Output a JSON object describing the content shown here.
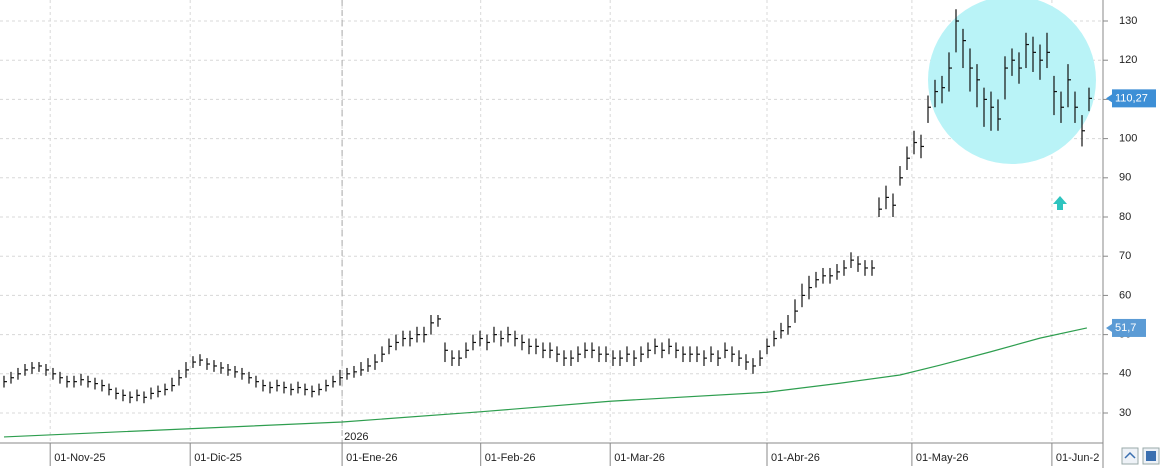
{
  "chart_data": {
    "type": "ohlc",
    "xlim": [
      -0.57,
      157
    ],
    "xticks": [
      {
        "value": 6.6,
        "label": "01-Nov-25"
      },
      {
        "value": 26.6,
        "label": "01-Dic-25"
      },
      {
        "value": 48.3,
        "label": "01-Ene-26"
      },
      {
        "value": 68.1,
        "label": "01-Feb-26"
      },
      {
        "value": 86.6,
        "label": "01-Mar-26"
      },
      {
        "value": 109,
        "label": "01-Abr-26"
      },
      {
        "value": 129.7,
        "label": "01-May-26"
      },
      {
        "value": 149.7,
        "label": "01-Jun-2"
      }
    ],
    "ylim": [
      22.35,
      135.36
    ],
    "yticks": [
      30,
      40,
      50,
      60,
      70,
      80,
      90,
      100,
      110,
      120,
      130
    ],
    "grid": true,
    "year_marker": {
      "value": 48.3,
      "label": "2026"
    },
    "series": [
      {
        "color": "#111111",
        "high": [
          39.5,
          40.5,
          41.5,
          42.5,
          43,
          43,
          42.5,
          41.5,
          40.5,
          39.5,
          39.5,
          40,
          39.5,
          39,
          38.5,
          37.5,
          36.5,
          36,
          35.5,
          36,
          35.5,
          36.5,
          37,
          37.5,
          39,
          41,
          43,
          44.5,
          45,
          44,
          43.5,
          43,
          42.5,
          42,
          41.5,
          40.5,
          39.5,
          38.5,
          38,
          38.5,
          38,
          37.5,
          38,
          37.5,
          37,
          37.5,
          38.5,
          39.5,
          41,
          41.5,
          42,
          43,
          44,
          45,
          47,
          49,
          50,
          51,
          51,
          52,
          52,
          55,
          55,
          48,
          46,
          46,
          48,
          50,
          51,
          50,
          52,
          51,
          52,
          51,
          50,
          49,
          49,
          48,
          48,
          47,
          46,
          46,
          47,
          48,
          48,
          47,
          47,
          46,
          46,
          47,
          46,
          47,
          48,
          49,
          48,
          49,
          48,
          47,
          47,
          47,
          46,
          47,
          46,
          48,
          47,
          46,
          45,
          44,
          46,
          49,
          51,
          53,
          55,
          59,
          63,
          65,
          66,
          67,
          67,
          68,
          69,
          71,
          70,
          69,
          69,
          85,
          88,
          86,
          93,
          98,
          102,
          101,
          111,
          115,
          116,
          122,
          133,
          128,
          123,
          119,
          113,
          112,
          110,
          121,
          123,
          122,
          127,
          126,
          124,
          127,
          116,
          112,
          119,
          112,
          106,
          113
        ],
        "low": [
          36.5,
          37.5,
          38.5,
          39.5,
          40,
          40.5,
          39.5,
          38.5,
          37.5,
          36.5,
          36.5,
          37,
          36.5,
          36,
          35.5,
          34.5,
          33.5,
          33,
          32.5,
          33,
          32.5,
          33.5,
          34,
          34.5,
          35.5,
          37,
          39,
          41.5,
          42,
          41,
          40.5,
          40,
          39.5,
          39,
          38.5,
          37.5,
          36.5,
          35.5,
          35,
          35.5,
          35,
          34.5,
          35,
          34.5,
          34,
          34.5,
          35.5,
          36.5,
          37,
          38.5,
          39,
          39.5,
          40.5,
          41,
          43,
          45,
          46,
          47,
          47,
          48,
          48,
          50,
          52,
          43,
          42,
          42,
          44,
          46,
          47,
          46,
          48,
          47,
          48,
          47,
          46,
          45,
          45,
          44,
          44,
          43,
          42,
          42,
          43,
          44,
          44,
          43,
          43,
          42,
          42,
          43,
          42,
          43,
          44,
          45,
          44,
          45,
          44,
          43,
          43,
          43,
          42,
          43,
          42,
          44,
          43,
          42,
          41,
          40,
          42,
          45,
          47,
          49,
          50,
          53,
          57,
          59,
          62,
          63,
          63,
          64,
          65,
          67,
          66,
          65,
          65,
          80,
          82,
          80,
          88,
          92,
          96,
          95,
          104,
          108,
          109,
          112,
          122,
          118,
          112,
          108,
          103,
          102,
          102,
          110,
          116,
          114,
          118,
          117,
          115,
          118,
          106,
          104,
          108,
          104,
          98,
          107
        ],
        "close": [
          38,
          39,
          40,
          41,
          41.5,
          42,
          41,
          40,
          39,
          38,
          38,
          38.5,
          38,
          37.5,
          37,
          36,
          35,
          34.5,
          34,
          34.5,
          34,
          35,
          35.5,
          36,
          37,
          39,
          41,
          43,
          43.5,
          42.5,
          42,
          41.5,
          41,
          40.5,
          40,
          39,
          38,
          37,
          36.5,
          37,
          36.5,
          36,
          36.5,
          36,
          35.5,
          36,
          37,
          38,
          39,
          40,
          40.5,
          41,
          42,
          43,
          45,
          47,
          48,
          49,
          49,
          50,
          50,
          53,
          54,
          46,
          44,
          44,
          46,
          48,
          49,
          48,
          50,
          49,
          50,
          49,
          48,
          47,
          47,
          46,
          46,
          45,
          44,
          44,
          45,
          46,
          46,
          45,
          45,
          44,
          44,
          45,
          44,
          45,
          46,
          47,
          46,
          47,
          46,
          45,
          45,
          45,
          44,
          45,
          44,
          46,
          45,
          44,
          43,
          42,
          44,
          47,
          49,
          51,
          52,
          56,
          60,
          62,
          64,
          65,
          65,
          66,
          67,
          69,
          68,
          67,
          67,
          82,
          85,
          83,
          90,
          95,
          99,
          98,
          108,
          112,
          113,
          118,
          130,
          125,
          118,
          115,
          110,
          108,
          105,
          118,
          120,
          118,
          124,
          122,
          120,
          122,
          112,
          108,
          115,
          108,
          102,
          110.27
        ]
      }
    ],
    "moving_average": {
      "color": "#2e9e4f",
      "x": [
        0,
        48.3,
        68,
        86.6,
        109,
        119.4,
        128,
        133.7,
        140.9,
        148,
        154.7
      ],
      "values": [
        23.9,
        27.7,
        30.3,
        33,
        35.3,
        37.6,
        39.7,
        42.2,
        45.6,
        49.1,
        51.7
      ]
    },
    "last_price": {
      "value": 110.27,
      "label": "110,27",
      "color": "#3d8fd6"
    },
    "ma_label": {
      "value": 51.7,
      "label": "51,7",
      "color": "#5b9bd5"
    }
  }
}
